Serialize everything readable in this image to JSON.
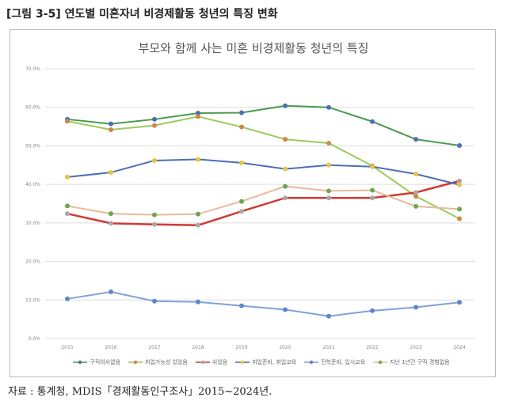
{
  "figure_title": "[그림 3-5] 연도별 미혼자녀 비경제활동 청년의 특징 변화",
  "source": "자료 : 통계청, MDIS「경제활동인구조사」2015~2024년.",
  "chart_data": {
    "type": "line",
    "title": "부모와 함께 사는 미혼 비경제활동 청년의 특징",
    "xlabel": "",
    "ylabel": "",
    "ylim": [
      0,
      70
    ],
    "yticks": [
      "0.0%",
      "10.0%",
      "20.0%",
      "30.0%",
      "40.0%",
      "50.0%",
      "60.0%",
      "70.0%"
    ],
    "grid": true,
    "legend": "bottom",
    "categories": [
      "2015",
      "2016",
      "2017",
      "2018",
      "2019",
      "2020",
      "2021",
      "2022",
      "2023",
      "2024"
    ],
    "series": [
      {
        "name": "구직의사없음",
        "line_color": "#4a9a4e",
        "marker_color": "#4a6fb5",
        "values": [
          56.9,
          55.7,
          56.9,
          58.5,
          58.6,
          60.4,
          60.0,
          56.3,
          51.7,
          50.1
        ]
      },
      {
        "name": "취업가능성 있었음",
        "line_color": "#9ccb5a",
        "marker_color": "#d0854a",
        "values": [
          56.4,
          54.2,
          55.3,
          57.6,
          54.9,
          51.7,
          50.7,
          44.8,
          36.9,
          31.1
        ]
      },
      {
        "name": "쉬었음",
        "line_color": "#d03a35",
        "marker_color": "#a8a8a8",
        "values": [
          32.4,
          29.9,
          29.6,
          29.4,
          33.0,
          36.5,
          36.5,
          36.5,
          37.9,
          40.9
        ]
      },
      {
        "name": "취업준비, 취업교육",
        "line_color": "#4a6fb5",
        "marker_color": "#e8c440",
        "values": [
          41.9,
          43.1,
          46.2,
          46.5,
          45.6,
          44.0,
          45.0,
          44.6,
          42.7,
          39.9
        ]
      },
      {
        "name": "진학준비, 입시교육",
        "line_color": "#7fa2d8",
        "marker_color": "#5e86c8",
        "values": [
          10.3,
          12.1,
          9.7,
          9.5,
          8.5,
          7.5,
          5.8,
          7.2,
          8.1,
          9.4
        ]
      },
      {
        "name": "지난 1년간 구직 경험없음",
        "line_color": "#e9b99a",
        "marker_color": "#6aa84f",
        "values": [
          34.4,
          32.4,
          32.1,
          32.3,
          35.6,
          39.5,
          38.3,
          38.5,
          34.3,
          33.6
        ]
      }
    ]
  }
}
